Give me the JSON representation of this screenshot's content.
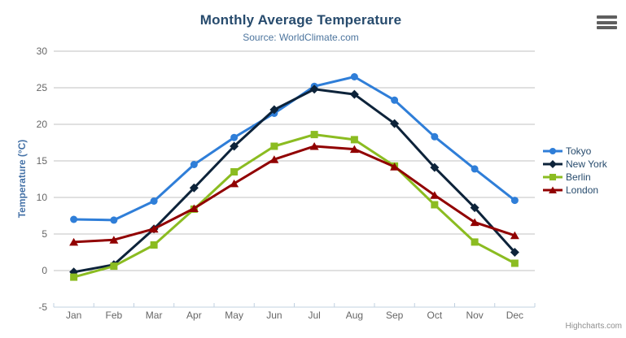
{
  "credits": {
    "label": "Highcharts.com"
  },
  "colors": {
    "title": "#274b6d",
    "subtitle": "#4d759e",
    "axis_label": "#666666",
    "axis_title": "#4572a7",
    "legend_text": "#274b6d",
    "gridline": "#c0c0c0",
    "axis_line": "#c0d0e0",
    "credits": "#8f8f8f",
    "menu_icon": "#5f5f5f"
  },
  "chart_data": {
    "type": "line",
    "title": "Monthly Average Temperature",
    "subtitle": "Source: WorldClimate.com",
    "xlabel": "",
    "ylabel": "Temperature (°C)",
    "ylim": [
      -5,
      30
    ],
    "ytick_interval": 5,
    "yticks": [
      -5,
      0,
      5,
      10,
      15,
      20,
      25,
      30
    ],
    "grid": true,
    "legend_position": "right",
    "categories": [
      "Jan",
      "Feb",
      "Mar",
      "Apr",
      "May",
      "Jun",
      "Jul",
      "Aug",
      "Sep",
      "Oct",
      "Nov",
      "Dec"
    ],
    "series": [
      {
        "name": "Tokyo",
        "color": "#2f7ed8",
        "marker": "circle",
        "values": [
          7.0,
          6.9,
          9.5,
          14.5,
          18.2,
          21.5,
          25.2,
          26.5,
          23.3,
          18.3,
          13.9,
          9.6
        ]
      },
      {
        "name": "New York",
        "color": "#0d233a",
        "marker": "diamond",
        "values": [
          -0.2,
          0.8,
          5.7,
          11.3,
          17.0,
          22.0,
          24.8,
          24.1,
          20.1,
          14.1,
          8.6,
          2.5
        ]
      },
      {
        "name": "Berlin",
        "color": "#8bbc21",
        "marker": "square",
        "values": [
          -0.9,
          0.6,
          3.5,
          8.4,
          13.5,
          17.0,
          18.6,
          17.9,
          14.3,
          9.0,
          3.9,
          1.0
        ]
      },
      {
        "name": "London",
        "color": "#910000",
        "marker": "triangle",
        "values": [
          3.9,
          4.2,
          5.7,
          8.5,
          11.9,
          15.2,
          17.0,
          16.6,
          14.2,
          10.3,
          6.6,
          4.8
        ]
      }
    ]
  }
}
